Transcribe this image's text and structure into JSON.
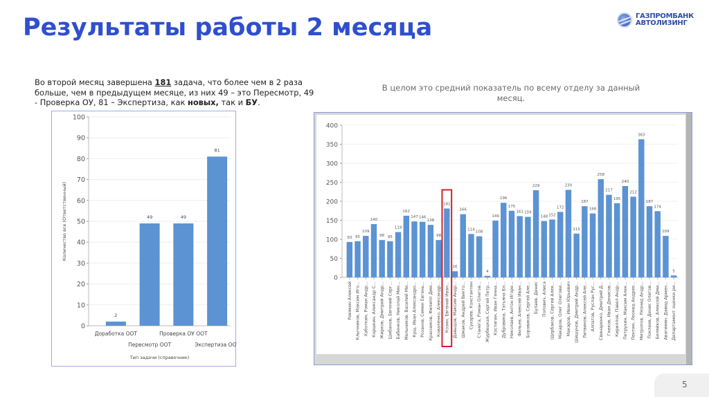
{
  "header": {
    "title": "Результаты работы 2 месяца",
    "logo": {
      "icon": "globe-logo-icon",
      "line1": "ГАЗПРОМБАНК",
      "line2": "АВТОЛИЗИНГ"
    }
  },
  "description": {
    "part1": "Во второй месяц завершена ",
    "highlight_count": "181",
    "part2": " задача, что более чем в 2 раза больше, чем в предыдущем месяце, из них  49 – это Пересмотр, 49 - Проверка ОУ, 81 – Экспертиза, как ",
    "bold1": "новых,",
    "part3": " так и ",
    "bold2": "БУ",
    "part4": "."
  },
  "note": "В целом это средний показатель по всему отделу за данный месяц.",
  "page_number": "5",
  "colors": {
    "title": "#2f4fcf",
    "bar": "#5b93d3",
    "highlight_box": "#d0202a",
    "frame": "#9aaee0"
  },
  "chart_data": [
    {
      "type": "bar",
      "title": "",
      "xlabel": "Тип задачи (справочник)",
      "ylabel": "Количество все (Ответственный)",
      "ylim": [
        0,
        100
      ],
      "yticks": [
        0,
        10,
        20,
        30,
        40,
        50,
        60,
        70,
        80,
        90,
        100
      ],
      "grid": true,
      "categories": [
        "Доработка ООТ",
        "Пересмотр ООТ",
        "Проверка ОУ ООТ",
        "Экспертиза ООТ"
      ],
      "values": [
        2,
        49,
        49,
        81
      ]
    },
    {
      "type": "bar",
      "title": "",
      "xlabel": "",
      "ylabel": "",
      "ylim": [
        0,
        400
      ],
      "yticks": [
        0,
        50,
        100,
        150,
        200,
        250,
        300,
        350,
        400
      ],
      "grid": true,
      "highlighted_category": "Козин, Евгений Иван...",
      "categories": [
        "Ревякин Алексей",
        "Клычников, Максим Иго...",
        "Хаботкин, Роман Андр...",
        "Коршкин, Александр С...",
        "Жирков, Дмитрий Андр...",
        "Шибанов, Евгений Серг...",
        "Бабенков, Николай Мих...",
        "Мельников, Василий Ми...",
        "Кущ, Иван Александро...",
        "Розанов, Семен Евгень...",
        "Красников, Филипп Дми...",
        "Коваленко, Александр...",
        "Козин, Евгений Иван...",
        "Давыдов, Максим Андр...",
        "Шмаков, Андрей Викто...",
        "Сухарев, Константин",
        "Станега, Роман Олегов...",
        "Журбецкая, Сергей Петр...",
        "Костигин, Иван Генна...",
        "Дубровина, Татьяна Вл...",
        "Николаев, Антон Игоре...",
        "Фильев, Алексей Иван...",
        "Боровиков, Сергей Але...",
        "Булаев, Денис",
        "Попович, Алиса",
        "Щербаков, Сергей Алек...",
        "Макаров, Олег Олегови...",
        "Макаров, Иван Юрьевич",
        "Шишунов, Дмитрий Андр...",
        "Литвинов, Алексей Але...",
        "Алпатов, Руслан Рус...",
        "Свинаренко, Дмитрий Д...",
        "Гнеков, Иван Денисов...",
        "Кириллов, Павел Андр...",
        "Петрухин, Максим Алек...",
        "Пентин, Леонид Андрее...",
        "Митропов, Леонид Андр...",
        "Поклеев, Денис Олегов...",
        "Беляйков, Алексей Дми...",
        "Авагимян, Давид Армен...",
        "Департамент оценки ри..."
      ],
      "values": [
        93,
        95,
        109,
        140,
        98,
        95,
        119,
        162,
        147,
        146,
        138,
        98,
        181,
        16,
        166,
        114,
        108,
        4,
        149,
        196,
        175,
        161,
        159,
        229,
        148,
        152,
        172,
        230,
        115,
        187,
        168,
        258,
        217,
        195,
        240,
        212,
        363,
        187,
        174,
        109,
        5
      ]
    }
  ]
}
